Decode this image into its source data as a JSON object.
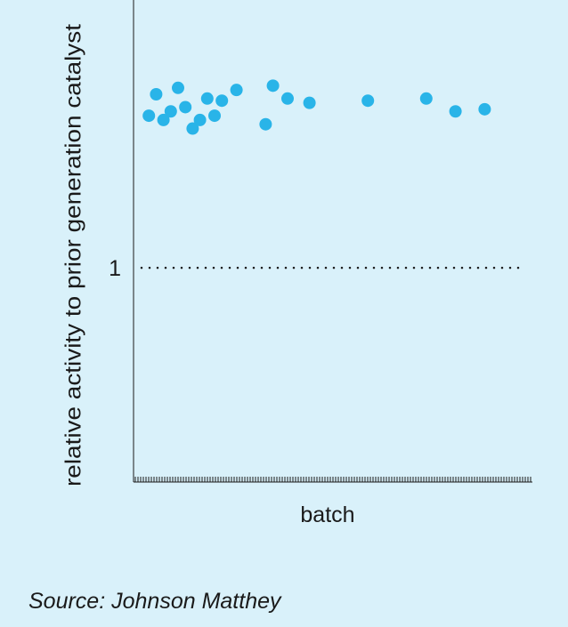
{
  "chart_data": {
    "type": "scatter",
    "title": "",
    "xlabel": "batch",
    "ylabel": "relative activity to prior generation catalyst",
    "reference_line": {
      "y": 1,
      "label": "1",
      "style": "dotted"
    },
    "y_ticks": [
      1
    ],
    "x_ticks": "unlabeled",
    "xlim": [
      0,
      100
    ],
    "ylim": [
      0,
      2.25
    ],
    "grid": false,
    "legend": "none",
    "point_color": "#29b4e8",
    "points": [
      {
        "x": 2,
        "y": 1.71
      },
      {
        "x": 4,
        "y": 1.81
      },
      {
        "x": 6,
        "y": 1.69
      },
      {
        "x": 8,
        "y": 1.73
      },
      {
        "x": 10,
        "y": 1.84
      },
      {
        "x": 12,
        "y": 1.75
      },
      {
        "x": 14,
        "y": 1.65
      },
      {
        "x": 16,
        "y": 1.69
      },
      {
        "x": 18,
        "y": 1.79
      },
      {
        "x": 20,
        "y": 1.71
      },
      {
        "x": 22,
        "y": 1.78
      },
      {
        "x": 26,
        "y": 1.83
      },
      {
        "x": 34,
        "y": 1.67
      },
      {
        "x": 36,
        "y": 1.85
      },
      {
        "x": 40,
        "y": 1.79
      },
      {
        "x": 46,
        "y": 1.77
      },
      {
        "x": 62,
        "y": 1.78
      },
      {
        "x": 78,
        "y": 1.79
      },
      {
        "x": 86,
        "y": 1.73
      },
      {
        "x": 94,
        "y": 1.74
      }
    ]
  },
  "source_text": "Source: Johnson Matthey"
}
